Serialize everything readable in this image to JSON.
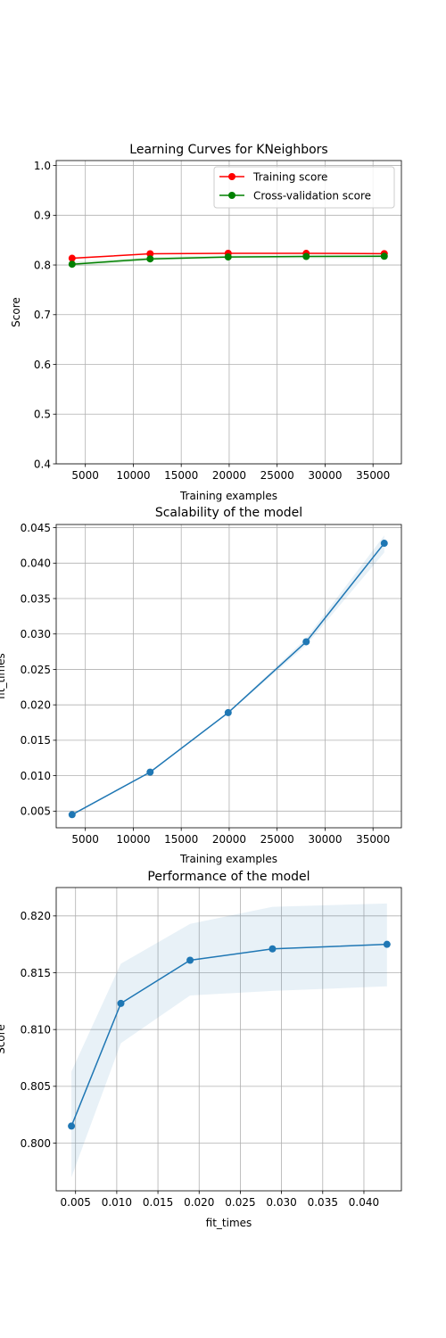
{
  "chart_data": [
    {
      "type": "line",
      "title": "Learning Curves for KNeighbors",
      "xlabel": "Training examples",
      "ylabel": "Score",
      "xlim": [
        1960,
        37960
      ],
      "ylim": [
        0.4,
        1.01
      ],
      "xticks": [
        5000,
        10000,
        15000,
        20000,
        25000,
        30000,
        35000
      ],
      "xtick_labels": [
        "5000",
        "10000",
        "15000",
        "20000",
        "25000",
        "30000",
        "35000"
      ],
      "yticks": [
        0.4,
        0.5,
        0.6,
        0.7,
        0.8,
        0.9,
        1.0
      ],
      "ytick_labels": [
        "0.4",
        "0.5",
        "0.6",
        "0.7",
        "0.8",
        "0.9",
        "1.0"
      ],
      "grid": true,
      "legend": "top-right",
      "x": [
        3617,
        11756,
        19895,
        28033,
        36172
      ],
      "series": [
        {
          "name": "Training score",
          "color": "#ff0000",
          "values": [
            0.8135,
            0.8225,
            0.8235,
            0.8233,
            0.8228
          ],
          "band_low": [
            0.8115,
            0.8215,
            0.8225,
            0.8226,
            0.8222
          ],
          "band_high": [
            0.8155,
            0.8235,
            0.8245,
            0.824,
            0.8234
          ]
        },
        {
          "name": "Cross-validation score",
          "color": "#008000",
          "values": [
            0.8015,
            0.8123,
            0.8161,
            0.8171,
            0.8175
          ],
          "band_low": [
            0.797,
            0.8088,
            0.813,
            0.8134,
            0.8138
          ],
          "band_high": [
            0.8063,
            0.8158,
            0.8193,
            0.8208,
            0.8211
          ]
        }
      ]
    },
    {
      "type": "line",
      "title": "Scalability of the model",
      "xlabel": "Training examples",
      "ylabel": "fit_times",
      "xlim": [
        1960,
        37960
      ],
      "ylim": [
        0.00265,
        0.04545
      ],
      "xticks": [
        5000,
        10000,
        15000,
        20000,
        25000,
        30000,
        35000
      ],
      "xtick_labels": [
        "5000",
        "10000",
        "15000",
        "20000",
        "25000",
        "30000",
        "35000"
      ],
      "yticks": [
        0.005,
        0.01,
        0.015,
        0.02,
        0.025,
        0.03,
        0.035,
        0.04,
        0.045
      ],
      "ytick_labels": [
        "0.005",
        "0.010",
        "0.015",
        "0.020",
        "0.025",
        "0.030",
        "0.035",
        "0.040",
        "0.045"
      ],
      "grid": true,
      "color": "#1f77b4",
      "x": [
        3617,
        11756,
        19895,
        28033,
        36172
      ],
      "values": [
        0.0045,
        0.0105,
        0.0189,
        0.0289,
        0.0428
      ],
      "band_low": [
        0.0045,
        0.0104,
        0.0188,
        0.0284,
        0.0415
      ],
      "band_high": [
        0.0046,
        0.0106,
        0.019,
        0.0294,
        0.0439
      ]
    },
    {
      "type": "line",
      "title": "Performance of the model",
      "xlabel": "fit_times",
      "ylabel": "Score",
      "xlim": [
        0.00265,
        0.04455
      ],
      "ylim": [
        0.7958,
        0.8225
      ],
      "xticks": [
        0.005,
        0.01,
        0.015,
        0.02,
        0.025,
        0.03,
        0.035,
        0.04
      ],
      "xtick_labels": [
        "0.005",
        "0.010",
        "0.015",
        "0.020",
        "0.025",
        "0.030",
        "0.035",
        "0.040"
      ],
      "yticks": [
        0.8,
        0.805,
        0.81,
        0.815,
        0.82
      ],
      "ytick_labels": [
        "0.800",
        "0.805",
        "0.810",
        "0.815",
        "0.820"
      ],
      "grid": true,
      "color": "#1f77b4",
      "x": [
        0.0045,
        0.0105,
        0.0189,
        0.0289,
        0.0428
      ],
      "values": [
        0.8015,
        0.8123,
        0.8161,
        0.8171,
        0.8175
      ],
      "band_low": [
        0.797,
        0.8088,
        0.813,
        0.8134,
        0.8138
      ],
      "band_high": [
        0.8063,
        0.8158,
        0.8193,
        0.8208,
        0.8211
      ]
    }
  ]
}
